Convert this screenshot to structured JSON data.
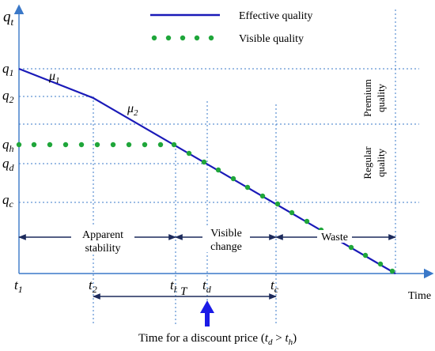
{
  "axes": {
    "y_symbol": "q",
    "y_subscript": "t",
    "x_label": "Time"
  },
  "legend": {
    "effective": "Effective quality",
    "visible": "Visible quality"
  },
  "quality_levels": {
    "q1": {
      "symbol": "q",
      "sub": "1"
    },
    "q2": {
      "symbol": "q",
      "sub": "2"
    },
    "qh": {
      "symbol": "q",
      "sub": "h"
    },
    "qd": {
      "symbol": "q",
      "sub": "d"
    },
    "qc": {
      "symbol": "q",
      "sub": "c"
    }
  },
  "rates": {
    "mu1": {
      "symbol": "μ",
      "sub": "1"
    },
    "mu2": {
      "symbol": "μ",
      "sub": "2"
    }
  },
  "time_points": {
    "t1": {
      "symbol": "t",
      "sub": "1"
    },
    "t2": {
      "symbol": "t",
      "sub": "2"
    },
    "th": {
      "symbol": "t",
      "sub": "h"
    },
    "td": {
      "symbol": "t",
      "sub": "d"
    },
    "tc": {
      "symbol": "t",
      "sub": "c"
    }
  },
  "interval_T": "T",
  "phases": {
    "apparent_line1": "Apparent",
    "apparent_line2": "stability",
    "visible_line1": "Visible",
    "visible_line2": "change",
    "waste": "Waste"
  },
  "zones": {
    "premium_line1": "Premium",
    "premium_line2": "quality",
    "regular_line1": "Regular",
    "regular_line2": "quality"
  },
  "caption": {
    "prefix": "Time for a discount price (",
    "t": "t",
    "d": "d",
    "gt": " > ",
    "h": "h",
    "suffix": ")"
  },
  "colors": {
    "effective_line": "#1a1ab8",
    "visible_dots": "#1fa63a",
    "grid": "#3a78c8",
    "axis": "#3a78c8",
    "arrows": "#1c2a5c",
    "discount_arrow": "#1a1ae6"
  }
}
